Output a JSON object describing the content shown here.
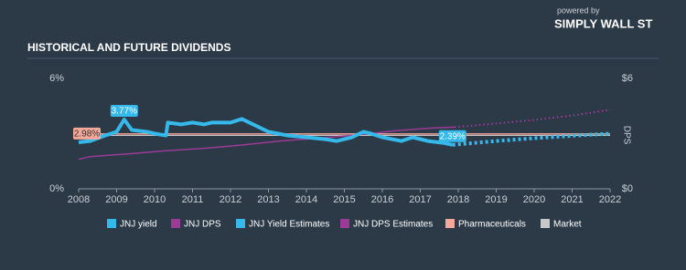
{
  "header": {
    "title": "HISTORICAL AND FUTURE DIVIDENDS",
    "logo_small": "powered by",
    "logo": "SIMPLY WALL ST"
  },
  "chart_data": {
    "type": "line",
    "y2label": "DPS",
    "xlim": [
      2008,
      2022
    ],
    "xticks": [
      2008,
      2009,
      2010,
      2011,
      2012,
      2013,
      2014,
      2015,
      2016,
      2017,
      2018,
      2019,
      2020,
      2021,
      2022
    ],
    "ylim": [
      0,
      6
    ],
    "yticks": [
      {
        "value": 0,
        "label": "0%"
      },
      {
        "value": 6,
        "label": "6%"
      }
    ],
    "y2lim": [
      0,
      6
    ],
    "y2ticks": [
      {
        "value": 0,
        "label": "$0"
      },
      {
        "value": 6,
        "label": "$6"
      }
    ],
    "series": [
      {
        "name": "JNJ yield",
        "color": "#35b8ea",
        "style": "solid",
        "width": 4,
        "x": [
          2008.0,
          2008.3,
          2008.7,
          2009.0,
          2009.2,
          2009.4,
          2009.8,
          2010.0,
          2010.3,
          2010.35,
          2010.7,
          2011.0,
          2011.3,
          2011.5,
          2012.0,
          2012.3,
          2012.6,
          2013.0,
          2013.5,
          2014.0,
          2014.5,
          2014.8,
          2015.2,
          2015.5,
          2015.7,
          2016.0,
          2016.5,
          2016.8,
          2017.2,
          2017.6,
          2017.85
        ],
        "values": [
          2.53,
          2.6,
          2.9,
          3.1,
          3.77,
          3.2,
          3.1,
          3.0,
          2.9,
          3.6,
          3.5,
          3.6,
          3.5,
          3.6,
          3.6,
          3.8,
          3.5,
          3.1,
          2.9,
          2.8,
          2.7,
          2.6,
          2.8,
          3.1,
          3.0,
          2.8,
          2.6,
          2.8,
          2.6,
          2.5,
          2.39
        ],
        "value_labels": [
          null,
          null,
          null,
          null,
          "3.77%",
          null,
          null,
          null,
          null,
          null,
          null,
          null,
          null,
          null,
          null,
          null,
          null,
          null,
          null,
          null,
          null,
          null,
          null,
          null,
          null,
          null,
          null,
          null,
          null,
          null,
          "2.39%"
        ]
      },
      {
        "name": "JNJ DPS",
        "color": "#9b3b96",
        "style": "solid",
        "width": 1.5,
        "axis": "y2",
        "x": [
          2008.0,
          2008.3,
          2009.3,
          2010.3,
          2011.3,
          2012.3,
          2013.3,
          2014.3,
          2015.3,
          2016.3,
          2017.3,
          2017.9
        ],
        "values": [
          1.6,
          1.75,
          1.9,
          2.07,
          2.2,
          2.38,
          2.6,
          2.75,
          2.92,
          3.15,
          3.3,
          3.35
        ]
      },
      {
        "name": "JNJ Yield Estimates",
        "color": "#35b8ea",
        "style": "dotted",
        "width": 4,
        "x": [
          2017.85,
          2019,
          2020,
          2021,
          2022
        ],
        "values": [
          2.39,
          2.6,
          2.75,
          2.88,
          3.0
        ]
      },
      {
        "name": "JNJ DPS Estimates",
        "color": "#9b3b96",
        "style": "dotted",
        "width": 2,
        "axis": "y2",
        "x": [
          2017.9,
          2019,
          2020,
          2021,
          2022
        ],
        "values": [
          3.35,
          3.55,
          3.75,
          3.98,
          4.3
        ]
      },
      {
        "name": "Pharmaceuticals",
        "color": "#f4a89a",
        "style": "solid",
        "width": 1.5,
        "x": [
          2008,
          2022
        ],
        "values": [
          2.98,
          2.98
        ],
        "value_labels": [
          "2.98%",
          null
        ]
      },
      {
        "name": "Market",
        "color": "#c8c8c8",
        "style": "solid",
        "width": 1,
        "x": [
          2008,
          2022
        ],
        "values": [
          2.9,
          2.9
        ]
      }
    ]
  }
}
